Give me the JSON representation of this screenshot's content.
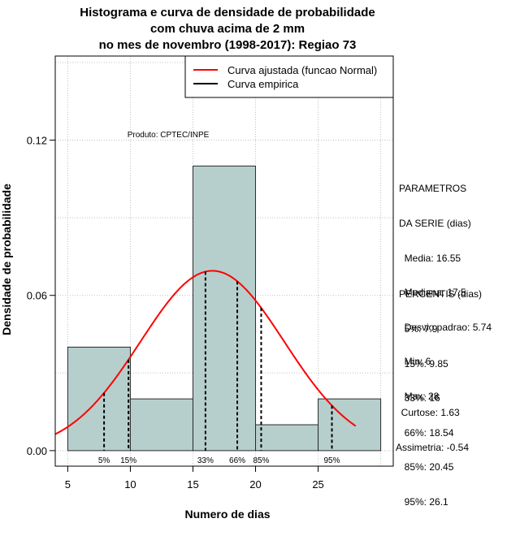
{
  "chart_data": {
    "type": "bar",
    "title_lines": [
      "Histograma e curva de densidade de probabilidade",
      "com chuva acima de 2 mm",
      "no mes de novembro (1998-2017): Regiao 73"
    ],
    "xlabel": "Numero de dias",
    "ylabel": "Densidade de probabilidade",
    "xlim": [
      4,
      31
    ],
    "ylim": [
      -0.006,
      0.1525
    ],
    "x_ticks": [
      5,
      10,
      15,
      20,
      25
    ],
    "x_tick_labels": [
      "5",
      "10",
      "15",
      "20",
      "25"
    ],
    "y_ticks": [
      0.0,
      0.06,
      0.12
    ],
    "y_tick_labels": [
      "0.00",
      "0.06",
      "0.12"
    ],
    "grid": true,
    "bins": [
      {
        "start": 5,
        "end": 10,
        "density": 0.04
      },
      {
        "start": 10,
        "end": 15,
        "density": 0.02
      },
      {
        "start": 15,
        "end": 20,
        "density": 0.11
      },
      {
        "start": 20,
        "end": 25,
        "density": 0.01
      },
      {
        "start": 25,
        "end": 30,
        "density": 0.02
      }
    ],
    "normal_fit": {
      "mean": 16.55,
      "sd": 5.74,
      "x_range": [
        4,
        28
      ]
    },
    "percentile_markers": [
      {
        "label": "5%",
        "x": 7.9
      },
      {
        "label": "15%",
        "x": 9.85
      },
      {
        "label": "33%",
        "x": 16
      },
      {
        "label": "66%",
        "x": 18.54
      },
      {
        "label": "85%",
        "x": 20.45
      },
      {
        "label": "95%",
        "x": 26.1
      }
    ],
    "legend": {
      "position": "top-right",
      "entries": [
        {
          "label": "Curva ajustada (funcao Normal)",
          "color": "#ff0000"
        },
        {
          "label": "Curva empirica",
          "color": "#000000"
        }
      ]
    },
    "annotation": "Produto: CPTEC/INPE",
    "colors": {
      "bar_fill": "#b6cfcd",
      "bar_stroke": "#2b2b2b",
      "curve": "#ff0000",
      "grid": "#c0c0c0"
    }
  },
  "stats_panel": {
    "parametros_lines": [
      "PARAMETROS",
      "DA SERIE (dias)",
      "  Media: 16.55",
      "  Mediana: 17.5",
      "  Desvio padrao: 5.74",
      "  Min: 6",
      "  Max: 28"
    ],
    "percentis_lines": [
      "PERCENTIS (dias)",
      "  5%: 7.9",
      "  15%: 9.85",
      "  33%: 16",
      "  66%: 18.54",
      "  85%: 20.45",
      "  95%: 26.1"
    ],
    "shape_lines": [
      "  Curtose: 1.63",
      "Assimetria: -0.54"
    ]
  }
}
